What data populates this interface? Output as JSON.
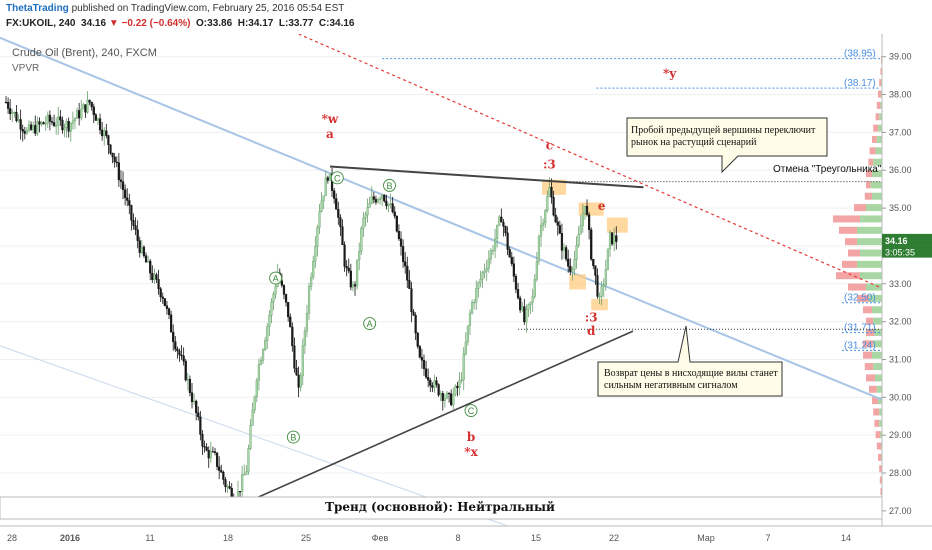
{
  "header": {
    "author": "ThetaTrading",
    "published": "published on TradingView.com, February 25, 2016 05:54 EST",
    "symbol": "FX:UKOIL, 240",
    "last": "34.16",
    "change": "−0.22 (−0.64%)",
    "open": "O:33.86",
    "high": "H:34.17",
    "low": "L:33.77",
    "close": "C:34.16"
  },
  "legend": {
    "title": "Crude Oil (Brent), 240, FXCM",
    "indicator": "VPVR"
  },
  "annotations": {
    "callout_top": "Пробой предыдущей вершины переключит рынок на растущий сценарий",
    "callout_bottom": "Возврат цены в нисходящие вилы станет сильным негативным сигналом",
    "cancel_label": "Отмена \"Треугольника\"",
    "trend_text": "Тренд (основной): Нейтральный",
    "waves": [
      {
        "text": "*w",
        "x": 31,
        "y": 37.25,
        "color": "#d32f2f"
      },
      {
        "text": "a",
        "x": 31,
        "y": 36.85,
        "color": "#d32f2f"
      },
      {
        "text": "c",
        "x": 52,
        "y": 36.55,
        "color": "#d32f2f"
      },
      {
        "text": ":3",
        "x": 52,
        "y": 36.05,
        "color": "#d32f2f"
      },
      {
        "text": "e",
        "x": 57,
        "y": 34.95,
        "color": "#d32f2f"
      },
      {
        "text": ":3",
        "x": 56,
        "y": 32.0,
        "color": "#d32f2f"
      },
      {
        "text": "d",
        "x": 56,
        "y": 31.65,
        "color": "#d32f2f"
      },
      {
        "text": "b",
        "x": 44.5,
        "y": 28.85,
        "color": "#d32f2f"
      },
      {
        "text": "*x",
        "x": 44.5,
        "y": 28.45,
        "color": "#d32f2f"
      },
      {
        "text": "*y",
        "x": 63.5,
        "y": 38.45,
        "color": "#d32f2f"
      }
    ],
    "circled": [
      {
        "text": "C",
        "x": 31.7,
        "y": 35.8
      },
      {
        "text": "B",
        "x": 36.7,
        "y": 35.6
      },
      {
        "text": "A",
        "x": 25.8,
        "y": 33.15
      },
      {
        "text": "A",
        "x": 34.8,
        "y": 31.95
      },
      {
        "text": "B",
        "x": 27.5,
        "y": 28.95
      },
      {
        "text": "C",
        "x": 44.5,
        "y": 29.65
      }
    ]
  },
  "colors": {
    "up": "#a5d6a7",
    "down": "#1a1a1a",
    "price_badge": "#2e7d32",
    "fib": "#4a90e2",
    "channel": "#a7c4e6",
    "triangle": "#444444",
    "trendline_red": "#e53935"
  },
  "chart_data": {
    "type": "candlestick",
    "title": "Crude Oil (Brent), 240, FXCM",
    "x_tick_labels": [
      "28",
      "2016",
      "11",
      "18",
      "25",
      "Фев",
      "8",
      "15",
      "22",
      "Мар",
      "7",
      "14"
    ],
    "y_tick_labels": [
      "27.00",
      "28.00",
      "29.00",
      "30.00",
      "31.00",
      "32.00",
      "33.00",
      "34.00",
      "35.00",
      "36.00",
      "37.00",
      "38.00",
      "39.00"
    ],
    "ylim": [
      26.6,
      39.6
    ],
    "price_labels": [
      {
        "text": "34.16",
        "y": 34.16
      },
      {
        "text": "3:05:35",
        "y": 33.85
      }
    ],
    "fib_levels": [
      {
        "text": "(38.95)",
        "value": 38.95
      },
      {
        "text": "(38.17)",
        "value": 38.17
      },
      {
        "text": "(32.50)",
        "value": 32.5
      },
      {
        "text": "(31.71)",
        "value": 31.71
      },
      {
        "text": "(31.24)",
        "value": 31.24
      }
    ],
    "cancel_level": 35.7,
    "candle_close_path": [
      [
        0,
        37.8
      ],
      [
        2,
        37.0
      ],
      [
        4,
        37.3
      ],
      [
        6,
        37.2
      ],
      [
        8,
        37.8
      ],
      [
        10,
        36.6
      ],
      [
        11,
        35.7
      ],
      [
        12,
        34.7
      ],
      [
        13,
        33.8
      ],
      [
        14,
        33.2
      ],
      [
        15,
        32.7
      ],
      [
        16,
        31.6
      ],
      [
        17,
        30.8
      ],
      [
        18,
        29.8
      ],
      [
        19,
        28.6
      ],
      [
        20,
        28.4
      ],
      [
        21,
        27.7
      ],
      [
        22,
        27.3
      ],
      [
        23,
        28.1
      ],
      [
        24,
        30.6
      ],
      [
        25,
        31.9
      ],
      [
        26,
        33.3
      ],
      [
        27,
        32.2
      ],
      [
        28,
        30.1
      ],
      [
        29,
        32.9
      ],
      [
        30,
        35.0
      ],
      [
        30.8,
        35.9
      ],
      [
        31.5,
        35.3
      ],
      [
        32.5,
        33.4
      ],
      [
        33.3,
        32.8
      ],
      [
        34.1,
        34.6
      ],
      [
        35,
        35.2
      ],
      [
        36,
        35.4
      ],
      [
        37,
        34.9
      ],
      [
        38.5,
        33.0
      ],
      [
        39.5,
        31.0
      ],
      [
        41,
        30.3
      ],
      [
        42.5,
        29.9
      ],
      [
        43.5,
        30.4
      ],
      [
        44.5,
        32.4
      ],
      [
        45.5,
        33.2
      ],
      [
        46.5,
        33.9
      ],
      [
        47.4,
        34.8
      ],
      [
        48.5,
        33.3
      ],
      [
        49.6,
        32.0
      ],
      [
        50.4,
        32.6
      ],
      [
        51,
        34.3
      ],
      [
        52,
        35.5
      ],
      [
        53,
        34.2
      ],
      [
        53.9,
        33.4
      ],
      [
        54.5,
        33.7
      ],
      [
        55.4,
        35.2
      ],
      [
        56,
        33.8
      ],
      [
        56.8,
        32.5
      ],
      [
        57.3,
        33.2
      ],
      [
        57.8,
        34.2
      ],
      [
        58.5,
        34.16
      ]
    ],
    "volume_profile": [
      [
        38.9,
        0.05,
        0.03
      ],
      [
        38.6,
        0.06,
        0.04
      ],
      [
        38.3,
        0.08,
        0.05
      ],
      [
        38.0,
        0.1,
        0.05
      ],
      [
        37.7,
        0.12,
        0.06
      ],
      [
        37.4,
        0.14,
        0.08
      ],
      [
        37.1,
        0.18,
        0.1
      ],
      [
        36.8,
        0.2,
        0.12
      ],
      [
        36.5,
        0.24,
        0.14
      ],
      [
        36.2,
        0.26,
        0.18
      ],
      [
        35.9,
        0.3,
        0.2
      ],
      [
        35.6,
        0.3,
        0.22
      ],
      [
        35.3,
        0.32,
        0.2
      ],
      [
        35.0,
        0.5,
        0.3
      ],
      [
        34.7,
        0.85,
        0.4
      ],
      [
        34.4,
        0.75,
        0.45
      ],
      [
        34.1,
        0.65,
        0.45
      ],
      [
        33.8,
        0.6,
        0.4
      ],
      [
        33.5,
        0.7,
        0.45
      ],
      [
        33.2,
        0.8,
        0.4
      ],
      [
        32.9,
        0.6,
        0.3
      ],
      [
        32.6,
        0.45,
        0.25
      ],
      [
        32.3,
        0.35,
        0.2
      ],
      [
        32.0,
        0.3,
        0.18
      ],
      [
        31.7,
        0.3,
        0.16
      ],
      [
        31.4,
        0.35,
        0.18
      ],
      [
        31.1,
        0.35,
        0.2
      ],
      [
        30.8,
        0.32,
        0.18
      ],
      [
        30.5,
        0.3,
        0.15
      ],
      [
        30.2,
        0.25,
        0.12
      ],
      [
        29.9,
        0.2,
        0.1
      ],
      [
        29.6,
        0.18,
        0.08
      ],
      [
        29.3,
        0.16,
        0.08
      ],
      [
        29.0,
        0.14,
        0.06
      ],
      [
        28.7,
        0.12,
        0.05
      ],
      [
        28.4,
        0.1,
        0.05
      ],
      [
        28.1,
        0.08,
        0.04
      ],
      [
        27.8,
        0.07,
        0.03
      ],
      [
        27.5,
        0.06,
        0.03
      ],
      [
        27.2,
        0.05,
        0.02
      ]
    ],
    "trendlines": {
      "channel_upper": [
        [
          -5,
          40.0
        ],
        [
          93,
          28.9
        ]
      ],
      "channel_lower": [
        [
          -2,
          31.5
        ],
        [
          48,
          26.6
        ]
      ],
      "triangle_upper": [
        [
          31,
          36.1
        ],
        [
          61,
          35.55
        ]
      ],
      "triangle_lower": [
        [
          22,
          27.1
        ],
        [
          60,
          31.75
        ]
      ],
      "red_dotted": [
        [
          28,
          39.6
        ],
        [
          92,
          31.9
        ]
      ],
      "horizontal_dotted": [
        [
          49,
          31.8
        ],
        [
          93,
          31.8
        ]
      ]
    },
    "highlight_zones": [
      {
        "x0": 51.3,
        "x1": 53.6,
        "y0": 35.35,
        "y1": 35.75
      },
      {
        "x0": 53.9,
        "x1": 55.5,
        "y0": 32.85,
        "y1": 33.25
      },
      {
        "x0": 54.8,
        "x1": 57.2,
        "y0": 34.8,
        "y1": 35.15
      },
      {
        "x0": 56.0,
        "x1": 57.6,
        "y0": 32.3,
        "y1": 32.6
      },
      {
        "x0": 57.5,
        "x1": 59.5,
        "y0": 34.35,
        "y1": 34.75
      }
    ]
  }
}
